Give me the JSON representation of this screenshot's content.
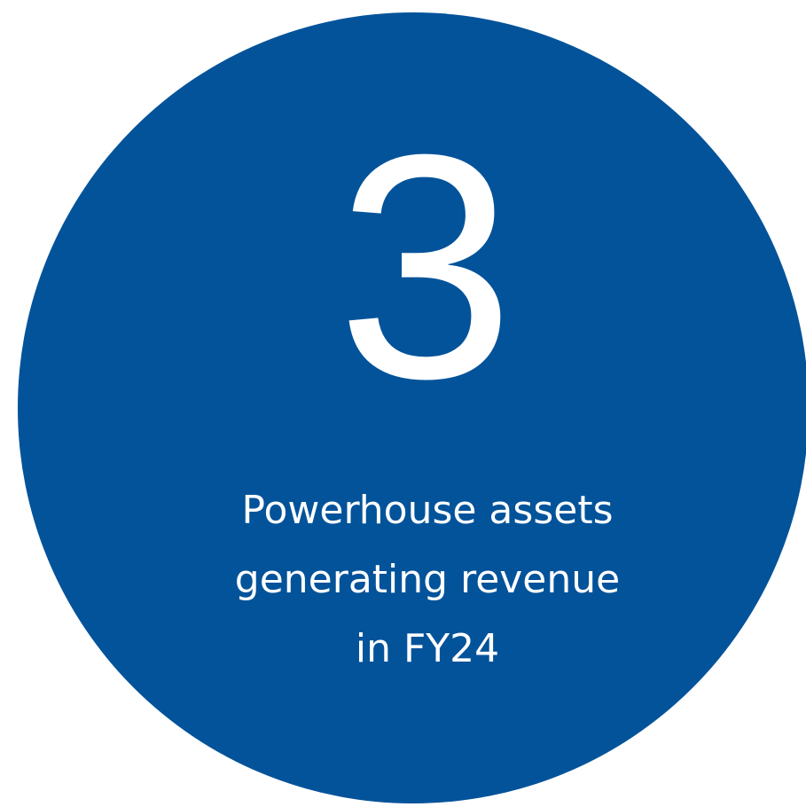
{
  "stat": {
    "value": 3,
    "caption_lines": [
      "Powerhouse assets",
      "generating revenue",
      "in FY24"
    ]
  }
}
